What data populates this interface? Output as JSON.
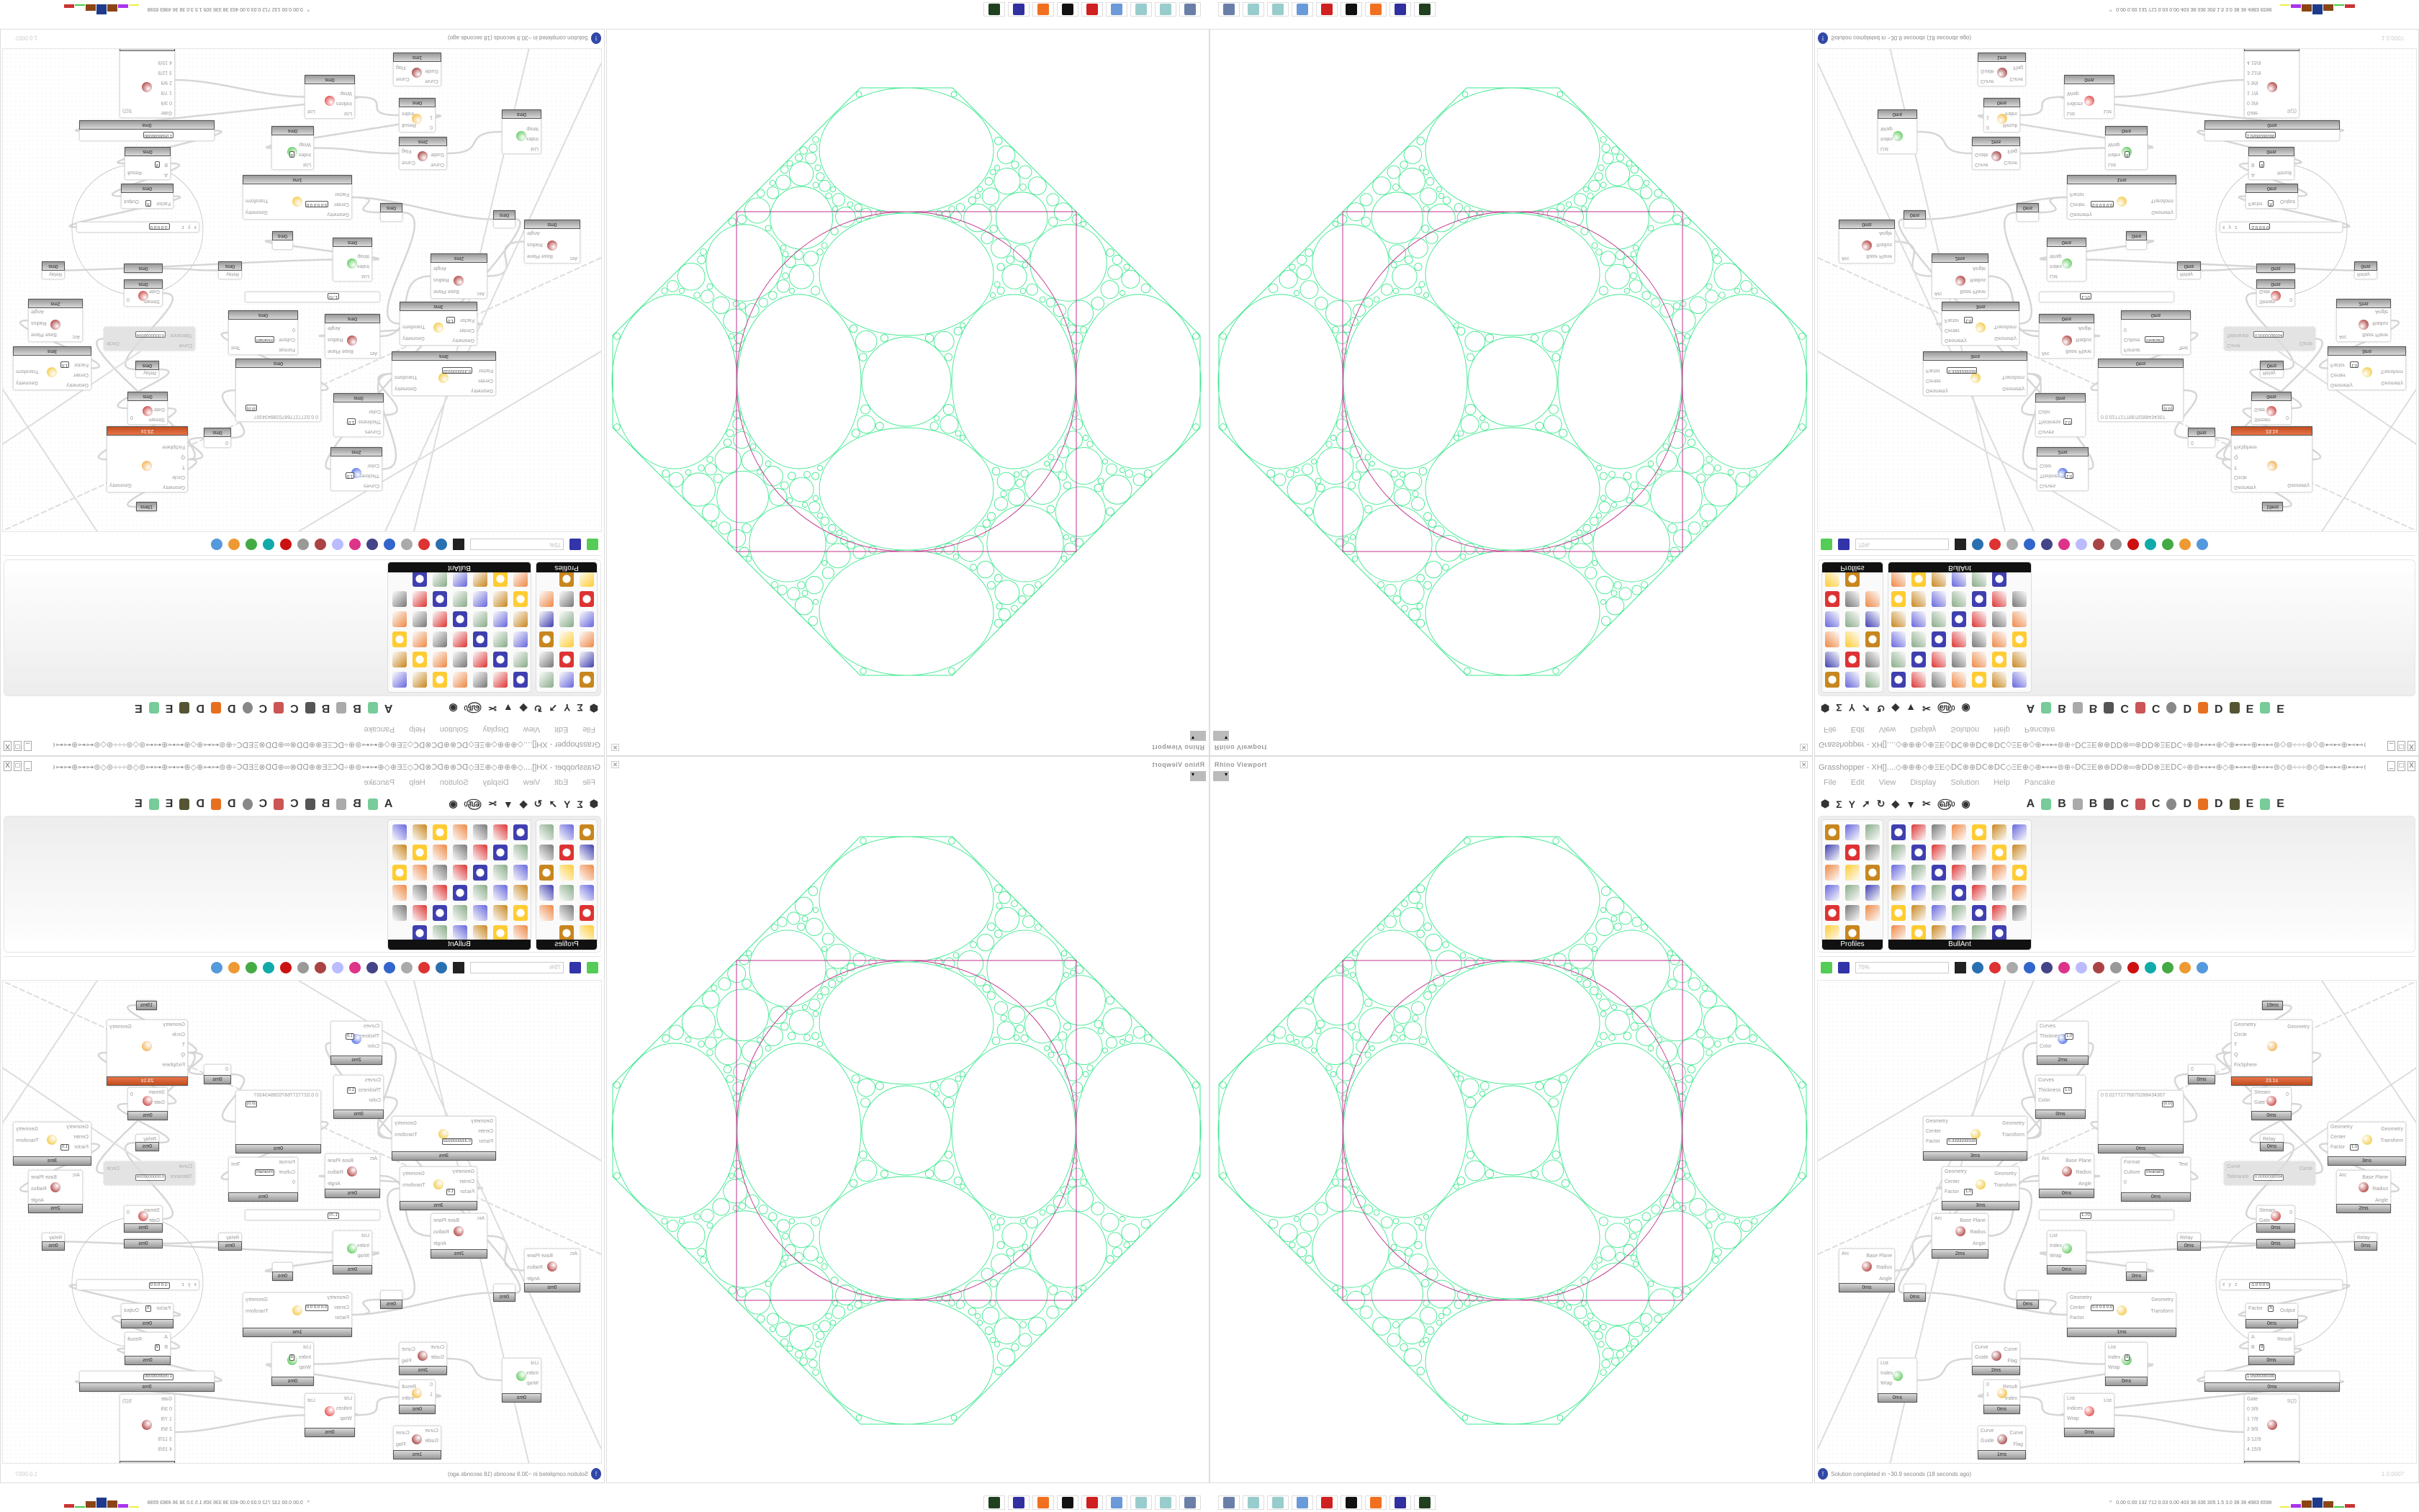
{
  "viewport": {
    "title": "Rhino Viewport",
    "close": "✕",
    "colors": {
      "circles": "#3ee88f",
      "frame": "#c0308a"
    }
  },
  "grasshopper": {
    "title": "Grasshopper - XH[]....◇⊕⊕⊕◇⊕ΞΕ◇ⅮⅭ⊗⊕ⅮⅭ⊗ⅮⅭ◇ΞΕ⊕◇⊕⊷⊷⊚⊕÷ⅮⅭΞΕ⊗⊕ⅮⅮ⊗∞⊕ⅮⅮ⊗ΞΕⅮⅭ÷⊕⊚⊷⊷⊕◇⊕⊷⊷⊕⊷⊷⊚◇⊚÷÷÷⊚◇⊚⊷⊷⊕⊷⊷⊕◇⊕⊷⊷⊚⊕÷ⅮⅭΞΕ⊗⊕ⅮⅮ⊗∞⊕...",
    "window_buttons": [
      "_",
      "□",
      "X"
    ],
    "menu": [
      "File",
      "Edit",
      "View",
      "Display",
      "Solution",
      "Help",
      "Pancake"
    ],
    "toolbar_left": [
      "hexagon-icon",
      "sigma-icon",
      "y-icon",
      "arrow-icon",
      "hook-icon",
      "shape-icon",
      "cone-icon",
      "scissors-icon",
      "spiral-icon",
      "eye-icon"
    ],
    "toolbar_letters": [
      "A",
      "B",
      "B",
      "C",
      "C",
      "D",
      "D",
      "E",
      "E"
    ],
    "panels": [
      {
        "label": "Profiles",
        "icon_count": 17
      },
      {
        "label": "BullAnt",
        "icon_count": 41
      }
    ],
    "zoom_level": "75%",
    "status": "Solution completed in ~30.9 seconds (18 seconds ago)",
    "version": "1.0.0007",
    "nodes": [
      {
        "ins": [
          "Curves",
          "Thickness",
          "Color"
        ],
        "outs": [],
        "time": "2ms",
        "val": "1.0",
        "color": "#3050e0"
      },
      {
        "ins": [
          "Curves",
          "Thickness",
          "Color"
        ],
        "outs": [],
        "time": "0ms",
        "val": "1.0"
      },
      {
        "ins": [
          "Geometry",
          "Circle",
          "T",
          "Q",
          "FixSphere"
        ],
        "outs": [
          "Geometry"
        ],
        "time": "23.1s",
        "hot": true,
        "color": "#f0a030"
      },
      {
        "ins": [],
        "outs": [],
        "time": "19ms"
      },
      {
        "ins": [
          "Geometry",
          "Center",
          "Factor"
        ],
        "outs": [
          "Geometry",
          "Transform"
        ],
        "time": "3ms",
        "val": "0.3333333333",
        "color": "#f0c020"
      },
      {
        "ins": [
          "0 0.02772776870288434307"
        ],
        "outs": [],
        "time": "0ms",
        "val": "{0;0}"
      },
      {
        "ins": [
          "0"
        ],
        "outs": [],
        "time": "0ms"
      },
      {
        "ins": [
          "Stream",
          "Gate"
        ],
        "outs": [
          "0"
        ],
        "time": "0ms",
        "color": "#c02020"
      },
      {
        "ins": [
          "Relay"
        ],
        "outs": [],
        "time": "0ms"
      },
      {
        "ins": [
          "Geometry",
          "Center",
          "Factor"
        ],
        "outs": [
          "Geometry",
          "Transform"
        ],
        "time": "3ms",
        "val": "1.0",
        "color": "#f0c020"
      },
      {
        "ins": [
          "Arc"
        ],
        "outs": [
          "Base Plane",
          "Radius",
          "Angle"
        ],
        "time": "0ms",
        "color": "#a01818"
      },
      {
        "ins": [
          "Format",
          "Culture",
          "0"
        ],
        "outs": [
          "Text"
        ],
        "time": "0ms",
        "val": "Invariant"
      },
      {
        "ins": [
          "Curve",
          "Tolerance"
        ],
        "outs": [
          "Circle"
        ],
        "time": "",
        "off": true,
        "val": "0.0000000004"
      },
      {
        "ins": [
          "Geometry",
          "Center",
          "Factor"
        ],
        "outs": [
          "Geometry",
          "Transform"
        ],
        "time": "3ms",
        "val": "1.0",
        "color": "#f0c020"
      },
      {
        "ins": [
          "Arc"
        ],
        "outs": [
          "Base Plane",
          "Radius",
          "Angle"
        ],
        "time": "2ms",
        "color": "#a01818"
      },
      {
        "ins": [],
        "outs": [],
        "time": "",
        "val": "1.70"
      },
      {
        "ins": [
          "Stream",
          "Gate"
        ],
        "outs": [
          "0"
        ],
        "time": "0ms",
        "color": "#c02020"
      },
      {
        "ins": [
          "Arc"
        ],
        "outs": [
          "Base Plane",
          "Radius",
          "Angle"
        ],
        "time": "2ms",
        "color": "#a01818"
      },
      {
        "ins": [
          "Arc"
        ],
        "outs": [
          "Base Plane",
          "Radius",
          "Angle"
        ],
        "time": "0ms",
        "color": "#a01818"
      },
      {
        "ins": [
          "List",
          "Index",
          "Wrap"
        ],
        "outs": [],
        "time": "0ms",
        "color": "#40c040"
      },
      {
        "ins": [
          "Relay"
        ],
        "outs": [],
        "time": "0ms"
      },
      {
        "ins": [
          "Relay"
        ],
        "outs": [],
        "time": "0ms"
      },
      {
        "ins": [],
        "outs": [],
        "time": "0ms"
      },
      {
        "ins": [],
        "outs": [],
        "time": "0ms"
      },
      {
        "ins": [],
        "outs": [],
        "time": "0ms"
      },
      {
        "ins": [],
        "outs": [],
        "time": "0ms"
      },
      {
        "ins": [
          "x",
          "y",
          "z"
        ],
        "outs": [],
        "time": "",
        "val": "-1.0  0.0  0"
      },
      {
        "ins": [
          "Geometry",
          "Center",
          "Factor"
        ],
        "outs": [
          "Geometry",
          "Transform"
        ],
        "time": "1ms",
        "val": "0.0  0.0  0.0",
        "color": "#f0c020"
      },
      {
        "ins": [
          "Factor"
        ],
        "outs": [
          "Output"
        ],
        "time": "0ms",
        "val": "π"
      },
      {
        "ins": [
          "A",
          "B"
        ],
        "outs": [
          "Result"
        ],
        "time": "0ms",
        "val": "9"
      },
      {
        "ins": [
          "Curve",
          "Guide"
        ],
        "outs": [
          "Curve",
          "Flag"
        ],
        "time": "2ms",
        "color": "#901818"
      },
      {
        "ins": [
          "List",
          "Index",
          "Wrap"
        ],
        "outs": [],
        "time": "0ms",
        "val": "8",
        "color": "#40c040"
      },
      {
        "ins": [
          "List",
          "Index",
          "Wrap"
        ],
        "outs": [],
        "time": "0ms",
        "color": "#40c040"
      },
      {
        "ins": [],
        "outs": [],
        "time": "0ms",
        "val": "1.0500000000"
      },
      {
        "ins": [
          "0",
          "1"
        ],
        "outs": [
          "Result",
          "Index"
        ],
        "time": "0ms",
        "color": "#f0b020"
      },
      {
        "ins": [
          "List",
          "Indices",
          "Wrap"
        ],
        "outs": [
          "List"
        ],
        "time": "0ms",
        "color": "#e02020"
      },
      {
        "ins": [
          "Gate",
          "0  3/9",
          "1  7/9",
          "2  9/9",
          "3  12/9",
          "4  15/9"
        ],
        "outs": [
          "S(2)"
        ],
        "time": "0ms",
        "color": "#a01818"
      },
      {
        "ins": [
          "Curve",
          "Guide"
        ],
        "outs": [
          "Curve",
          "Flag"
        ],
        "time": "1ms",
        "color": "#901818"
      }
    ]
  },
  "taskbar": {
    "apps": [
      {
        "name": "terminal-icon",
        "color": "#6a7fa8"
      },
      {
        "name": "notepad-icon",
        "color": "#9cc"
      },
      {
        "name": "notepad-icon",
        "color": "#9cc"
      },
      {
        "name": "calculator-icon",
        "color": "#6a9ad8"
      },
      {
        "name": "game-icon",
        "color": "#d02020"
      },
      {
        "name": "cow-icon",
        "color": "#111"
      },
      {
        "name": "firefox-icon",
        "color": "#f07020"
      },
      {
        "name": "floppy-icon",
        "color": "#3030a0"
      },
      {
        "name": "green-app-icon",
        "color": "#204020"
      }
    ],
    "stats": "0.00 0.00 132 712 0.03 0.00 403 38 336 305 1.5 3.0 38 36 4983 6598"
  }
}
